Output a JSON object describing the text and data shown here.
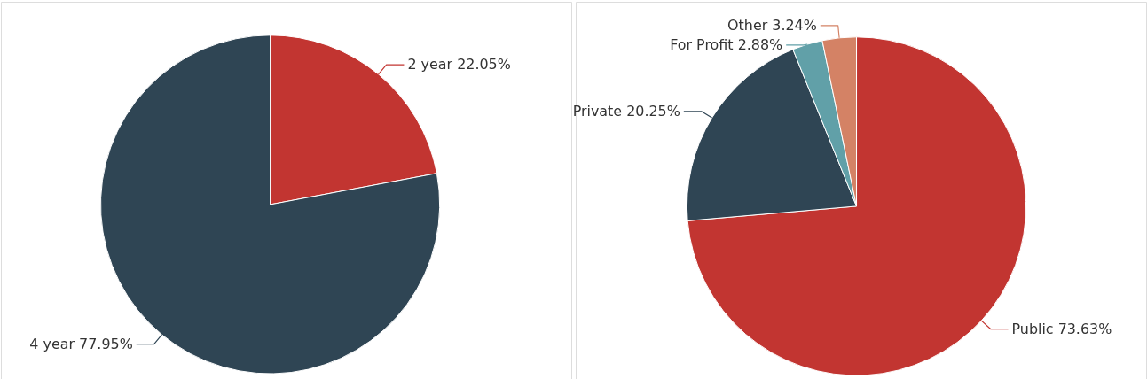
{
  "chart_data": [
    {
      "type": "pie",
      "categories": [
        "2 year",
        "4 year"
      ],
      "values": [
        22.05,
        77.95
      ],
      "value_labels": [
        "22.05%",
        "77.95%"
      ],
      "colors": [
        "#c23531",
        "#2f4554"
      ],
      "legend": false
    },
    {
      "type": "pie",
      "categories": [
        "Public",
        "Private",
        "For Profit",
        "Other"
      ],
      "values": [
        73.63,
        20.25,
        2.88,
        3.24
      ],
      "value_labels": [
        "73.63%",
        "20.25%",
        "2.88%",
        "3.24%"
      ],
      "colors": [
        "#c23531",
        "#2f4554",
        "#61a0a8",
        "#d48265"
      ],
      "legend": false
    }
  ]
}
